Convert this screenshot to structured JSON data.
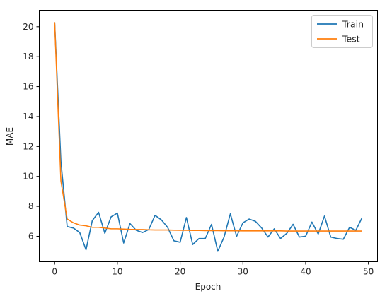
{
  "chart_data": {
    "type": "line",
    "title": "",
    "xlabel": "Epoch",
    "ylabel": "MAE",
    "xlim": [
      -2.45,
      51.45
    ],
    "ylim": [
      4.3,
      21.1
    ],
    "xticks": [
      0,
      10,
      20,
      30,
      40,
      50
    ],
    "yticks": [
      6,
      8,
      10,
      12,
      14,
      16,
      18,
      20
    ],
    "grid": false,
    "legend_position": "top-right",
    "x": [
      0,
      1,
      2,
      3,
      4,
      5,
      6,
      7,
      8,
      9,
      10,
      11,
      12,
      13,
      14,
      15,
      16,
      17,
      18,
      19,
      20,
      21,
      22,
      23,
      24,
      25,
      26,
      27,
      28,
      29,
      30,
      31,
      32,
      33,
      34,
      35,
      36,
      37,
      38,
      39,
      40,
      41,
      42,
      43,
      44,
      45,
      46,
      47,
      48,
      49
    ],
    "series": [
      {
        "name": "Train",
        "color": "#1f77b4",
        "values": [
          20.3,
          11.0,
          6.65,
          6.55,
          6.25,
          5.1,
          7.05,
          7.6,
          6.2,
          7.3,
          7.55,
          5.55,
          6.85,
          6.4,
          6.25,
          6.45,
          7.4,
          7.1,
          6.6,
          5.7,
          5.6,
          7.25,
          5.45,
          5.85,
          5.85,
          6.8,
          5.0,
          5.95,
          7.5,
          6.0,
          6.9,
          7.15,
          7.0,
          6.55,
          5.95,
          6.5,
          5.85,
          6.2,
          6.8,
          5.95,
          6.0,
          6.95,
          6.15,
          7.35,
          5.95,
          5.85,
          5.8,
          6.6,
          6.4,
          7.25
        ]
      },
      {
        "name": "Test",
        "color": "#ff7f0e",
        "values": [
          20.3,
          9.7,
          7.15,
          6.9,
          6.75,
          6.7,
          6.6,
          6.6,
          6.55,
          6.5,
          6.5,
          6.48,
          6.46,
          6.45,
          6.45,
          6.43,
          6.42,
          6.42,
          6.42,
          6.41,
          6.4,
          6.4,
          6.39,
          6.39,
          6.38,
          6.38,
          6.38,
          6.37,
          6.37,
          6.37,
          6.36,
          6.36,
          6.36,
          6.36,
          6.36,
          6.36,
          6.36,
          6.35,
          6.35,
          6.35,
          6.35,
          6.35,
          6.35,
          6.35,
          6.35,
          6.35,
          6.35,
          6.35,
          6.35,
          6.35
        ]
      }
    ]
  }
}
